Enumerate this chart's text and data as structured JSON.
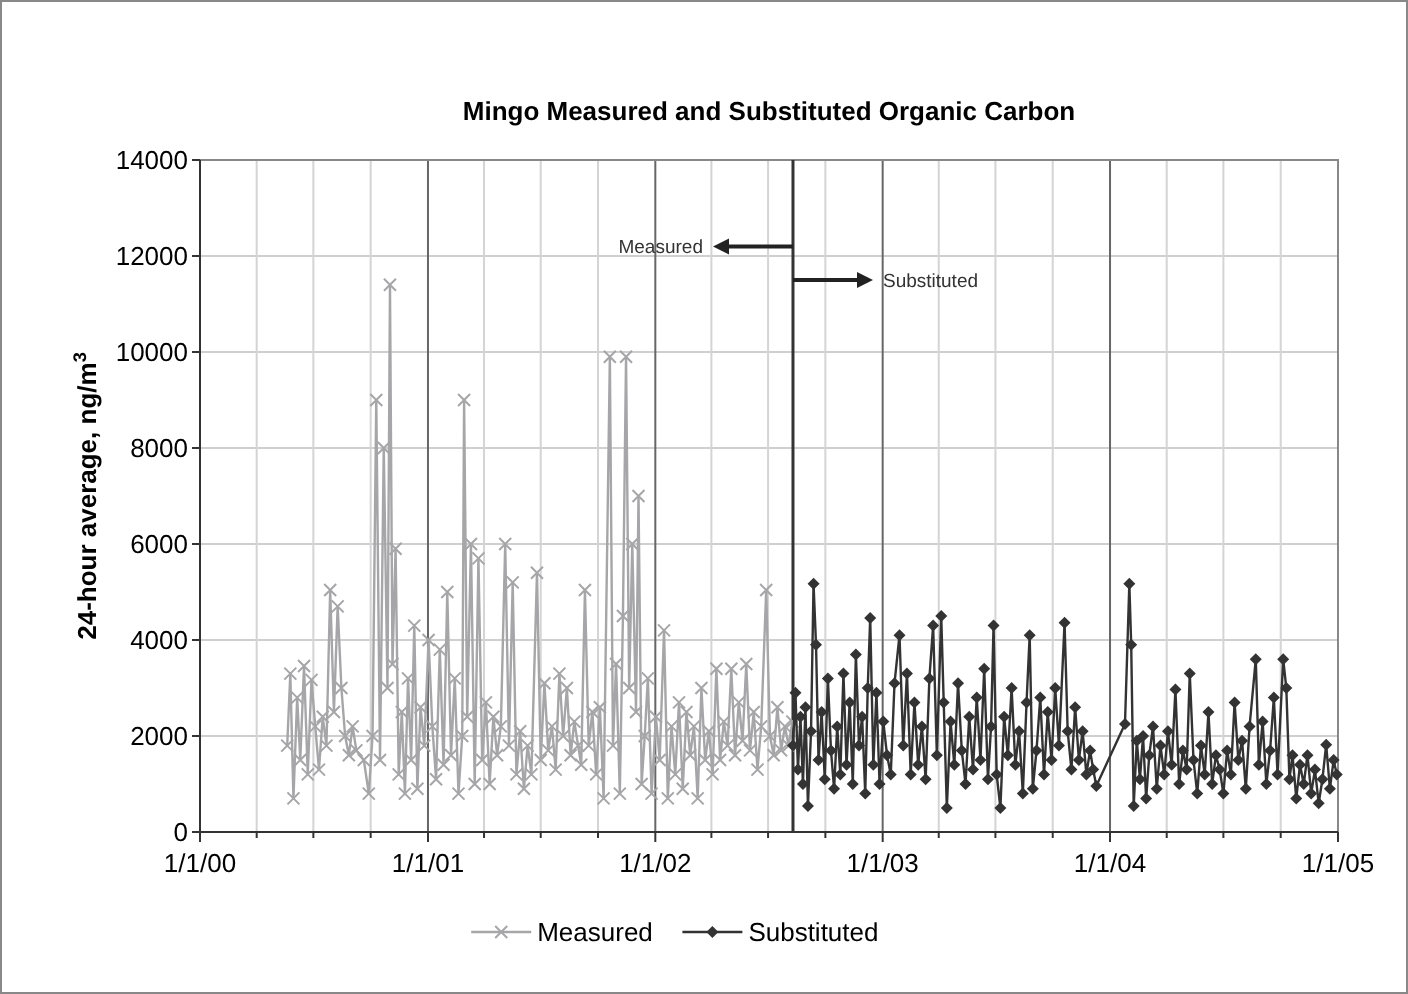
{
  "chart_data": {
    "type": "line",
    "title": "Mingo Measured and Substituted Organic Carbon",
    "ylabel": "24-hour average, ng/m$^{3}$",
    "xlim": [
      "2000-01-01",
      "2005-01-01"
    ],
    "xticks": [
      {
        "value": "2000-01-01",
        "label": "1/1/00"
      },
      {
        "value": "2000-04-01",
        "label": null
      },
      {
        "value": "2000-07-01",
        "label": null
      },
      {
        "value": "2000-10-01",
        "label": null
      },
      {
        "value": "2001-01-01",
        "label": "1/1/01"
      },
      {
        "value": "2001-04-01",
        "label": null
      },
      {
        "value": "2001-07-01",
        "label": null
      },
      {
        "value": "2001-10-01",
        "label": null
      },
      {
        "value": "2002-01-01",
        "label": "1/1/02"
      },
      {
        "value": "2002-04-01",
        "label": null
      },
      {
        "value": "2002-07-01",
        "label": null
      },
      {
        "value": "2002-10-01",
        "label": null
      },
      {
        "value": "2003-01-01",
        "label": "1/1/03"
      },
      {
        "value": "2003-04-01",
        "label": null
      },
      {
        "value": "2003-07-01",
        "label": null
      },
      {
        "value": "2003-10-01",
        "label": null
      },
      {
        "value": "2004-01-01",
        "label": "1/1/04"
      },
      {
        "value": "2004-04-01",
        "label": null
      },
      {
        "value": "2004-07-01",
        "label": null
      },
      {
        "value": "2004-10-01",
        "label": null
      },
      {
        "value": "2005-01-01",
        "label": "1/1/05"
      }
    ],
    "ylim": [
      0,
      14000
    ],
    "yticks": [
      0,
      2000,
      4000,
      6000,
      8000,
      10000,
      12000,
      14000
    ],
    "grid": true,
    "legend": "bottom",
    "line_style": "solid",
    "ref_lines": [
      {
        "axis": "x",
        "value": "2002-08-10",
        "color": "#333333"
      }
    ],
    "annotations": [
      {
        "text": "Measured",
        "x": "2002-08-10",
        "y": 12200
      },
      {
        "text": "Substituted",
        "x": "2002-08-10",
        "y": 11500
      }
    ],
    "series": [
      {
        "name": "Measured",
        "color": "#a6a6a8",
        "marker": "cross",
        "x": [
          "2000-05-20",
          "2000-05-25",
          "2000-05-30",
          "2000-06-05",
          "2000-06-10",
          "2000-06-16",
          "2000-06-22",
          "2000-06-28",
          "2000-07-04",
          "2000-07-10",
          "2000-07-16",
          "2000-07-22",
          "2000-07-28",
          "2000-08-03",
          "2000-08-09",
          "2000-08-15",
          "2000-08-21",
          "2000-08-27",
          "2000-09-02",
          "2000-09-08",
          "2000-09-20",
          "2000-09-28",
          "2000-10-04",
          "2000-10-10",
          "2000-10-16",
          "2000-10-22",
          "2000-10-28",
          "2000-11-01",
          "2000-11-05",
          "2000-11-10",
          "2000-11-15",
          "2000-11-20",
          "2000-11-25",
          "2000-11-30",
          "2000-12-05",
          "2000-12-10",
          "2000-12-15",
          "2000-12-20",
          "2000-12-26",
          "2001-01-02",
          "2001-01-08",
          "2001-01-14",
          "2001-01-20",
          "2001-01-26",
          "2001-02-01",
          "2001-02-07",
          "2001-02-13",
          "2001-02-19",
          "2001-02-25",
          "2001-02-28",
          "2001-03-05",
          "2001-03-11",
          "2001-03-17",
          "2001-03-23",
          "2001-03-29",
          "2001-04-04",
          "2001-04-10",
          "2001-04-16",
          "2001-04-22",
          "2001-04-28",
          "2001-05-05",
          "2001-05-11",
          "2001-05-17",
          "2001-05-23",
          "2001-05-29",
          "2001-06-04",
          "2001-06-10",
          "2001-06-16",
          "2001-06-25",
          "2001-07-01",
          "2001-07-07",
          "2001-07-13",
          "2001-07-19",
          "2001-07-25",
          "2001-07-31",
          "2001-08-06",
          "2001-08-12",
          "2001-08-18",
          "2001-08-24",
          "2001-08-30",
          "2001-09-04",
          "2001-09-10",
          "2001-09-16",
          "2001-09-22",
          "2001-09-28",
          "2001-10-04",
          "2001-10-10",
          "2001-10-20",
          "2001-10-25",
          "2001-10-30",
          "2001-11-05",
          "2001-11-10",
          "2001-11-15",
          "2001-11-20",
          "2001-11-25",
          "2001-12-01",
          "2001-12-05",
          "2001-12-10",
          "2001-12-15",
          "2001-12-20",
          "2001-12-26",
          "2002-01-02",
          "2002-01-08",
          "2002-01-15",
          "2002-01-21",
          "2002-01-27",
          "2002-02-02",
          "2002-02-08",
          "2002-02-14",
          "2002-02-20",
          "2002-02-26",
          "2002-03-04",
          "2002-03-10",
          "2002-03-16",
          "2002-03-22",
          "2002-03-28",
          "2002-04-03",
          "2002-04-09",
          "2002-04-15",
          "2002-04-21",
          "2002-04-27",
          "2002-05-03",
          "2002-05-09",
          "2002-05-15",
          "2002-05-21",
          "2002-05-27",
          "2002-06-02",
          "2002-06-08",
          "2002-06-14",
          "2002-06-20",
          "2002-06-28",
          "2002-07-04",
          "2002-07-10",
          "2002-07-16",
          "2002-07-22",
          "2002-07-28",
          "2002-08-03",
          "2002-08-09"
        ],
        "values": [
          1800,
          3300,
          700,
          2800,
          1500,
          3460,
          1200,
          3170,
          2200,
          1300,
          2400,
          1800,
          5040,
          2500,
          4700,
          3000,
          2000,
          1600,
          2200,
          1700,
          1500,
          800,
          2000,
          9000,
          1500,
          8000,
          3000,
          11400,
          3500,
          5900,
          1200,
          2500,
          800,
          3200,
          1500,
          4300,
          900,
          2600,
          1800,
          4000,
          2200,
          1100,
          3800,
          1400,
          5000,
          1600,
          3200,
          800,
          2000,
          9000,
          2400,
          6000,
          1000,
          5700,
          1500,
          2700,
          1000,
          2400,
          1600,
          2200,
          6000,
          1800,
          5200,
          1200,
          2100,
          900,
          1800,
          1200,
          5400,
          1500,
          3100,
          1700,
          2200,
          1300,
          3300,
          2000,
          3000,
          1600,
          2300,
          1800,
          1400,
          5040,
          1800,
          2500,
          1200,
          2600,
          700,
          9900,
          1800,
          3500,
          800,
          4500,
          9900,
          3000,
          6000,
          2500,
          7000,
          1000,
          2000,
          3200,
          800,
          2400,
          1500,
          4200,
          700,
          2200,
          1200,
          2700,
          900,
          2500,
          1600,
          2200,
          700,
          3000,
          1500,
          2100,
          1200,
          3400,
          1500,
          2300,
          1800,
          3400,
          1600,
          2700,
          1900,
          3500,
          1700,
          2500,
          1300,
          2200,
          5040,
          2000,
          1600,
          2600,
          1700,
          2200,
          1800,
          2300
        ]
      },
      {
        "name": "Substituted",
        "color": "#333333",
        "marker": "diamond",
        "x": [
          "2002-08-10",
          "2002-08-14",
          "2002-08-18",
          "2002-08-22",
          "2002-08-26",
          "2002-08-30",
          "2002-09-03",
          "2002-09-08",
          "2002-09-12",
          "2002-09-16",
          "2002-09-20",
          "2002-09-25",
          "2002-09-30",
          "2002-10-05",
          "2002-10-10",
          "2002-10-15",
          "2002-10-20",
          "2002-10-25",
          "2002-10-30",
          "2002-11-04",
          "2002-11-09",
          "2002-11-14",
          "2002-11-19",
          "2002-11-24",
          "2002-11-29",
          "2002-12-04",
          "2002-12-08",
          "2002-12-12",
          "2002-12-17",
          "2002-12-22",
          "2002-12-27",
          "2003-01-02",
          "2003-01-08",
          "2003-01-14",
          "2003-01-20",
          "2003-01-28",
          "2003-02-03",
          "2003-02-09",
          "2003-02-15",
          "2003-02-21",
          "2003-02-27",
          "2003-03-05",
          "2003-03-11",
          "2003-03-17",
          "2003-03-23",
          "2003-03-29",
          "2003-04-05",
          "2003-04-09",
          "2003-04-14",
          "2003-04-20",
          "2003-04-26",
          "2003-05-02",
          "2003-05-08",
          "2003-05-14",
          "2003-05-20",
          "2003-05-26",
          "2003-06-01",
          "2003-06-07",
          "2003-06-13",
          "2003-06-19",
          "2003-06-24",
          "2003-06-28",
          "2003-07-03",
          "2003-07-09",
          "2003-07-15",
          "2003-07-21",
          "2003-07-27",
          "2003-08-02",
          "2003-08-08",
          "2003-08-14",
          "2003-08-20",
          "2003-08-25",
          "2003-08-30",
          "2003-09-05",
          "2003-09-11",
          "2003-09-17",
          "2003-09-23",
          "2003-09-29",
          "2003-10-05",
          "2003-10-11",
          "2003-10-20",
          "2003-10-25",
          "2003-10-31",
          "2003-11-06",
          "2003-11-12",
          "2003-11-18",
          "2003-11-24",
          "2003-11-30",
          "2003-12-05",
          "2003-12-10",
          "2004-01-25",
          "2004-02-01",
          "2004-02-04",
          "2004-02-08",
          "2004-02-13",
          "2004-02-18",
          "2004-02-23",
          "2004-02-28",
          "2004-03-04",
          "2004-03-10",
          "2004-03-16",
          "2004-03-22",
          "2004-03-28",
          "2004-04-03",
          "2004-04-09",
          "2004-04-15",
          "2004-04-21",
          "2004-04-27",
          "2004-05-03",
          "2004-05-08",
          "2004-05-14",
          "2004-05-20",
          "2004-05-26",
          "2004-06-01",
          "2004-06-07",
          "2004-06-13",
          "2004-06-19",
          "2004-06-25",
          "2004-07-01",
          "2004-07-07",
          "2004-07-13",
          "2004-07-19",
          "2004-07-25",
          "2004-07-31",
          "2004-08-06",
          "2004-08-12",
          "2004-08-22",
          "2004-08-27",
          "2004-09-02",
          "2004-09-08",
          "2004-09-14",
          "2004-09-20",
          "2004-09-26",
          "2004-10-05",
          "2004-10-10",
          "2004-10-15",
          "2004-10-20",
          "2004-10-26",
          "2004-11-01",
          "2004-11-07",
          "2004-11-13",
          "2004-11-19",
          "2004-11-25",
          "2004-12-01",
          "2004-12-07",
          "2004-12-13",
          "2004-12-19",
          "2004-12-25",
          "2004-12-30"
        ],
        "values": [
          1800,
          2900,
          1300,
          2400,
          1000,
          2600,
          540,
          2100,
          5170,
          3900,
          1500,
          2500,
          1100,
          3200,
          1700,
          900,
          2200,
          1200,
          3300,
          1400,
          2700,
          1000,
          3700,
          1800,
          2400,
          800,
          3000,
          4460,
          1400,
          2900,
          1000,
          2300,
          1600,
          1200,
          3100,
          4100,
          1800,
          3300,
          1200,
          2700,
          1400,
          2200,
          1100,
          3200,
          4300,
          1600,
          4500,
          2700,
          500,
          2300,
          1400,
          3100,
          1700,
          1000,
          2400,
          1300,
          2800,
          1500,
          3400,
          1100,
          2200,
          4300,
          1200,
          500,
          2400,
          1600,
          3000,
          1400,
          2100,
          800,
          2700,
          4100,
          900,
          1700,
          2800,
          1200,
          2500,
          1500,
          3000,
          1800,
          4360,
          2100,
          1300,
          2600,
          1500,
          2100,
          1200,
          1700,
          1300,
          960,
          2250,
          5170,
          3900,
          540,
          1900,
          1100,
          2000,
          700,
          1600,
          2200,
          900,
          1800,
          1200,
          2100,
          1400,
          2970,
          1000,
          1700,
          1300,
          3300,
          1500,
          800,
          1800,
          1200,
          2500,
          1000,
          1600,
          1300,
          800,
          1700,
          1200,
          2700,
          1500,
          1900,
          900,
          2200,
          3600,
          1400,
          2300,
          1000,
          1700,
          2800,
          1200,
          3600,
          3000,
          1100,
          1600,
          700,
          1400,
          1000,
          1600,
          800,
          1300,
          600,
          1100,
          1820,
          900,
          1500,
          1200
        ]
      }
    ]
  }
}
